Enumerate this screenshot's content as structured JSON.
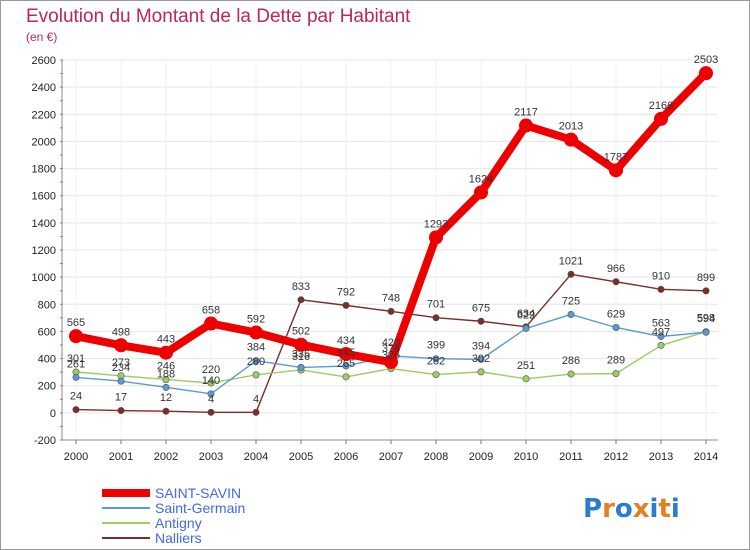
{
  "chart_data": {
    "type": "line",
    "title": "Evolution du Montant de la Dette par Habitant",
    "subtitle": "(en €)",
    "x": [
      "2000",
      "2001",
      "2002",
      "2003",
      "2004",
      "2005",
      "2006",
      "2007",
      "2008",
      "2009",
      "2010",
      "2011",
      "2012",
      "2013",
      "2014"
    ],
    "ylim": [
      -200,
      2600
    ],
    "yticks": [
      -200,
      0,
      200,
      400,
      600,
      800,
      1000,
      1200,
      1400,
      1600,
      1800,
      2000,
      2200,
      2400,
      2600
    ],
    "grid": true,
    "legend_position": "bottom-left",
    "series": [
      {
        "name": "SAINT-SAVIN",
        "color": "#ee0000",
        "values": [
          565,
          498,
          443,
          658,
          592,
          502,
          434,
          374,
          1293,
          1624,
          2117,
          2013,
          1787,
          2166,
          2503
        ]
      },
      {
        "name": "Saint-Germain",
        "color": "#5a9bd5",
        "values": [
          261,
          234,
          188,
          140,
          384,
          335,
          345,
          420,
          399,
          394,
          622,
          725,
          629,
          563,
          594
        ]
      },
      {
        "name": "Antigny",
        "color": "#9acd64",
        "values": [
          301,
          273,
          246,
          220,
          280,
          316,
          265,
          326,
          282,
          302,
          251,
          286,
          289,
          497,
          598
        ]
      },
      {
        "name": "Nalliers",
        "color": "#7b2c2c",
        "values": [
          24,
          17,
          12,
          4,
          4,
          833,
          792,
          748,
          701,
          675,
          634,
          1021,
          966,
          910,
          899
        ]
      }
    ]
  },
  "logo": {
    "text": "Proxiti"
  }
}
